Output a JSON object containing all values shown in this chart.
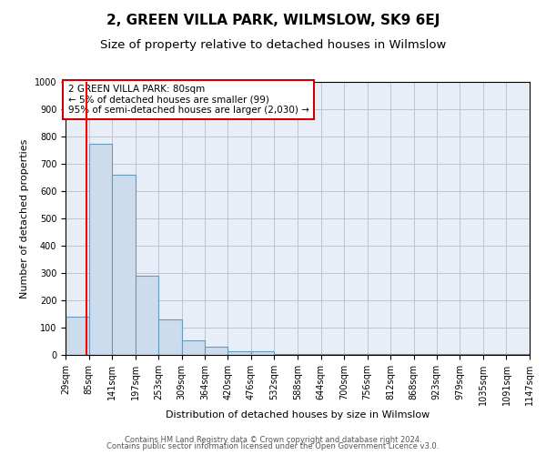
{
  "title": "2, GREEN VILLA PARK, WILMSLOW, SK9 6EJ",
  "subtitle": "Size of property relative to detached houses in Wilmslow",
  "xlabel": "Distribution of detached houses by size in Wilmslow",
  "ylabel": "Number of detached properties",
  "bin_edges": [
    29,
    85,
    141,
    197,
    253,
    309,
    364,
    420,
    476,
    532,
    588,
    644,
    700,
    756,
    812,
    868,
    923,
    979,
    1035,
    1091,
    1147
  ],
  "bar_heights": [
    140,
    775,
    660,
    290,
    130,
    55,
    30,
    15,
    15,
    5,
    5,
    3,
    3,
    3,
    3,
    3,
    3,
    3,
    3,
    3
  ],
  "bar_color": "#ccdcec",
  "bar_edge_color": "#6699bb",
  "grid_color": "#bbbbcc",
  "bg_color": "#e8eef8",
  "red_line_x": 80,
  "annotation_text": "2 GREEN VILLA PARK: 80sqm\n← 5% of detached houses are smaller (99)\n95% of semi-detached houses are larger (2,030) →",
  "annotation_box_color": "#cc0000",
  "ylim": [
    0,
    1000
  ],
  "yticks": [
    0,
    100,
    200,
    300,
    400,
    500,
    600,
    700,
    800,
    900,
    1000
  ],
  "footer_line1": "Contains HM Land Registry data © Crown copyright and database right 2024.",
  "footer_line2": "Contains public sector information licensed under the Open Government Licence v3.0.",
  "title_fontsize": 11,
  "subtitle_fontsize": 9.5,
  "axis_label_fontsize": 8,
  "tick_fontsize": 7,
  "annot_fontsize": 7.5,
  "footer_fontsize": 6
}
